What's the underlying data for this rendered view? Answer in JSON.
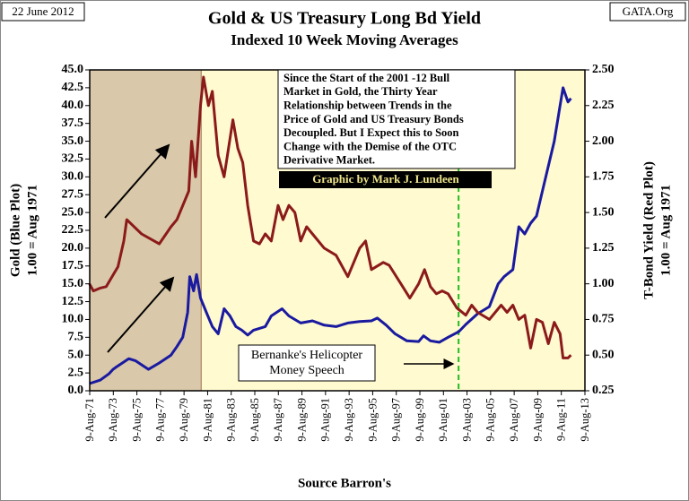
{
  "chart_data": {
    "type": "line",
    "title": "Gold & US Treasury Long Bd Yield",
    "subtitle": "Indexed 10 Week Moving Averages",
    "date_stamp": "22 June 2012",
    "site": "GATA.Org",
    "source": "Source Barron's",
    "credit": "Graphic by Mark J. Lundeen",
    "ylabel": [
      "Gold (Blue Plot)",
      "1.00 = Aug 1971"
    ],
    "y2label": [
      "T-Bond Yield (Red Plot)",
      "1.00 = Aug 1971"
    ],
    "annotation": [
      "Since the Start of the 2001 -12 Bull",
      "Market in Gold, the Thirty Year",
      "Relationship between Trends in the",
      "Price of Gold and US Treasury Bonds",
      "Decoupled.  But I Expect this to Soon",
      "Change with the Demise of the OTC",
      "Derivative Market."
    ],
    "callout": [
      "Bernanke's Helicopter",
      "Money Speech"
    ],
    "vline": {
      "x": "2002-11-21",
      "color": "#22bb22"
    },
    "shade": {
      "x": [
        "1971-08-09",
        "1981-01-21"
      ],
      "color": "#d9c8a9"
    },
    "background": "#fffad0",
    "xlim": [
      "1971-08-09",
      "2013-08-09"
    ],
    "xticks": [
      {
        "value": "1971-08-09",
        "label": "9-Aug-71"
      },
      {
        "value": "1973-08-09",
        "label": "9-Aug-73"
      },
      {
        "value": "1975-08-09",
        "label": "9-Aug-75"
      },
      {
        "value": "1977-08-09",
        "label": "9-Aug-77"
      },
      {
        "value": "1979-08-09",
        "label": "9-Aug-79"
      },
      {
        "value": "1981-08-09",
        "label": "9-Aug-81"
      },
      {
        "value": "1983-08-09",
        "label": "9-Aug-83"
      },
      {
        "value": "1985-08-09",
        "label": "9-Aug-85"
      },
      {
        "value": "1987-08-09",
        "label": "9-Aug-87"
      },
      {
        "value": "1989-08-09",
        "label": "9-Aug-89"
      },
      {
        "value": "1991-08-09",
        "label": "9-Aug-91"
      },
      {
        "value": "1993-08-09",
        "label": "9-Aug-93"
      },
      {
        "value": "1995-08-09",
        "label": "9-Aug-95"
      },
      {
        "value": "1997-08-09",
        "label": "9-Aug-97"
      },
      {
        "value": "1999-08-09",
        "label": "9-Aug-99"
      },
      {
        "value": "2001-08-09",
        "label": "9-Aug-01"
      },
      {
        "value": "2003-08-09",
        "label": "9-Aug-03"
      },
      {
        "value": "2005-08-09",
        "label": "9-Aug-05"
      },
      {
        "value": "2007-08-09",
        "label": "9-Aug-07"
      },
      {
        "value": "2009-08-09",
        "label": "9-Aug-09"
      },
      {
        "value": "2011-08-09",
        "label": "9-Aug-11"
      },
      {
        "value": "2013-08-09",
        "label": "9-Aug-13"
      }
    ],
    "ylim": [
      0,
      45
    ],
    "yticks": [
      {
        "value": 0,
        "label": "0.0"
      },
      2.5,
      {
        "value": 5,
        "label": "5.0"
      },
      7.5,
      {
        "value": 10,
        "label": "10.0"
      },
      12.5,
      {
        "value": 15,
        "label": "15.0"
      },
      17.5,
      {
        "value": 20,
        "label": "20.0"
      },
      22.5,
      {
        "value": 25,
        "label": "25.0"
      },
      27.5,
      {
        "value": 30,
        "label": "30.0"
      },
      32.5,
      {
        "value": 35,
        "label": "35.0"
      },
      37.5,
      {
        "value": 40,
        "label": "40.0"
      },
      42.5,
      {
        "value": 45,
        "label": "45.0"
      }
    ],
    "y2lim": [
      0.25,
      2.5
    ],
    "y2ticks": [
      0.25,
      {
        "value": 0.5,
        "label": "0.50"
      },
      0.75,
      {
        "value": 1,
        "label": "1.00"
      },
      1.25,
      {
        "value": 1.5,
        "label": "1.50"
      },
      1.75,
      {
        "value": 2,
        "label": "2.00"
      },
      2.25,
      {
        "value": 2.5,
        "label": "2.50"
      }
    ],
    "series": [
      {
        "name": "Gold",
        "color": "#1a1aa0",
        "x": [
          "1971-08",
          "1972-07",
          "1973-04",
          "1973-08",
          "1974-01",
          "1974-12",
          "1975-07",
          "1976-08",
          "1977-07",
          "1978-07",
          "1979-01",
          "1979-07",
          "1979-12",
          "1980-02",
          "1980-06",
          "1980-09",
          "1981-01",
          "1981-07",
          "1982-01",
          "1982-07",
          "1983-01",
          "1983-07",
          "1984-01",
          "1984-07",
          "1985-01",
          "1985-07",
          "1986-07",
          "1987-01",
          "1987-12",
          "1988-07",
          "1989-07",
          "1990-07",
          "1991-07",
          "1992-07",
          "1993-07",
          "1994-07",
          "1995-07",
          "1996-01",
          "1996-10",
          "1997-07",
          "1998-07",
          "1999-07",
          "1999-12",
          "2000-07",
          "2001-04",
          "2002-01",
          "2002-12",
          "2003-07",
          "2004-07",
          "2005-07",
          "2006-04",
          "2006-10",
          "2007-07",
          "2008-01",
          "2008-07",
          "2009-01",
          "2009-07",
          "2010-01",
          "2010-07",
          "2011-01",
          "2011-07",
          "2011-10",
          "2012-03",
          "2012-06"
        ],
        "values": [
          1.0,
          1.5,
          2.4,
          3.0,
          3.5,
          4.5,
          4.2,
          3.0,
          3.9,
          5.0,
          6.2,
          7.5,
          11,
          16,
          14,
          16.3,
          13,
          11,
          9,
          8,
          11.5,
          10.5,
          9,
          8.5,
          7.8,
          8.5,
          9,
          10.5,
          11.5,
          10.5,
          9.5,
          9.8,
          9.2,
          9.0,
          9.5,
          9.7,
          9.8,
          10.2,
          9.2,
          8.0,
          7.0,
          6.9,
          7.7,
          7.0,
          6.8,
          7.5,
          8.3,
          9.3,
          10.8,
          11.8,
          15,
          16,
          17,
          23,
          22,
          23.5,
          24.5,
          28,
          31.5,
          35,
          40,
          42.5,
          40.5,
          41
        ]
      },
      {
        "name": "T-Bond Yield",
        "color": "#8b1a1a",
        "axis": "y2",
        "x": [
          "1971-08",
          "1971-12",
          "1972-07",
          "1973-01",
          "1973-07",
          "1974-01",
          "1974-07",
          "1974-10",
          "1976-01",
          "1977-07",
          "1978-07",
          "1979-01",
          "1980-01",
          "1980-04",
          "1980-08",
          "1981-01",
          "1981-04",
          "1981-09",
          "1982-01",
          "1982-07",
          "1983-01",
          "1983-10",
          "1984-03",
          "1984-08",
          "1985-01",
          "1985-07",
          "1986-01",
          "1986-07",
          "1987-01",
          "1987-08",
          "1988-01",
          "1988-07",
          "1989-01",
          "1989-07",
          "1990-01",
          "1990-07",
          "1991-07",
          "1992-07",
          "1993-07",
          "1994-07",
          "1995-01",
          "1995-07",
          "1996-07",
          "1997-01",
          "1998-01",
          "1998-10",
          "1999-07",
          "2000-01",
          "2000-07",
          "2001-01",
          "2001-07",
          "2002-01",
          "2002-10",
          "2003-07",
          "2004-01",
          "2004-07",
          "2005-07",
          "2006-07",
          "2007-01",
          "2007-07",
          "2008-01",
          "2008-07",
          "2009-01",
          "2009-07",
          "2010-01",
          "2010-07",
          "2011-01",
          "2011-07",
          "2011-10",
          "2012-03",
          "2012-06"
        ],
        "values": [
          1.0,
          0.95,
          0.97,
          0.98,
          1.05,
          1.12,
          1.3,
          1.45,
          1.35,
          1.28,
          1.4,
          1.45,
          1.65,
          2.0,
          1.75,
          2.25,
          2.45,
          2.25,
          2.35,
          1.9,
          1.75,
          2.15,
          1.95,
          1.85,
          1.55,
          1.3,
          1.28,
          1.35,
          1.3,
          1.55,
          1.45,
          1.55,
          1.5,
          1.3,
          1.4,
          1.35,
          1.25,
          1.2,
          1.05,
          1.25,
          1.3,
          1.1,
          1.15,
          1.13,
          1.0,
          0.9,
          1.0,
          1.1,
          0.98,
          0.93,
          0.95,
          0.93,
          0.83,
          0.78,
          0.85,
          0.8,
          0.75,
          0.85,
          0.8,
          0.85,
          0.75,
          0.78,
          0.55,
          0.75,
          0.73,
          0.58,
          0.73,
          0.65,
          0.48,
          0.48,
          0.5
        ]
      }
    ]
  }
}
